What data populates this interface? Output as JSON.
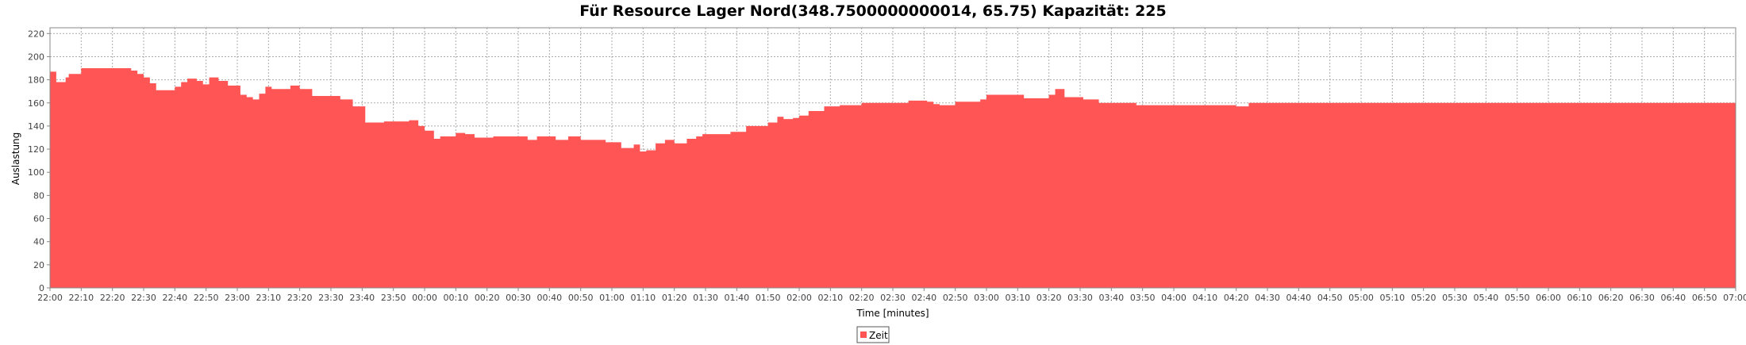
{
  "chart_data": {
    "type": "area",
    "title": "Für Resource Lager Nord(348.7500000000014, 65.75) Kapazität: 225",
    "xlabel": "Time [minutes]",
    "ylabel": "Auslastung",
    "ylim": [
      0,
      225
    ],
    "xlim": [
      "22:00",
      "07:00"
    ],
    "x_domain_minutes": [
      0,
      540
    ],
    "y_ticks": [
      "0",
      "20",
      "40",
      "60",
      "80",
      "100",
      "120",
      "140",
      "160",
      "180",
      "200",
      "220"
    ],
    "x_ticks": [
      "22:00",
      "22:10",
      "22:20",
      "22:30",
      "22:40",
      "22:50",
      "23:00",
      "23:10",
      "23:20",
      "23:30",
      "23:40",
      "23:50",
      "00:00",
      "00:10",
      "00:20",
      "00:30",
      "00:40",
      "00:50",
      "01:00",
      "01:10",
      "01:20",
      "01:30",
      "01:40",
      "01:50",
      "02:00",
      "02:10",
      "02:20",
      "02:30",
      "02:40",
      "02:50",
      "03:00",
      "03:10",
      "03:20",
      "03:30",
      "03:40",
      "03:50",
      "04:00",
      "04:10",
      "04:20",
      "04:30",
      "04:40",
      "04:50",
      "05:00",
      "05:10",
      "05:20",
      "05:30",
      "05:40",
      "05:50",
      "06:00",
      "06:10",
      "06:20",
      "06:30",
      "06:40",
      "06:50",
      "07:00"
    ],
    "grid": true,
    "legend_position": "bottom",
    "series": [
      {
        "name": "Zeit",
        "color": "#ff5555",
        "x": [
          "22:00",
          "22:02",
          "22:05",
          "22:06",
          "22:10",
          "22:26",
          "22:28",
          "22:30",
          "22:32",
          "22:34",
          "22:40",
          "22:42",
          "22:44",
          "22:47",
          "22:49",
          "22:51",
          "22:54",
          "22:57",
          "23:01",
          "23:03",
          "23:05",
          "23:07",
          "23:09",
          "23:11",
          "23:17",
          "23:20",
          "23:24",
          "23:33",
          "23:37",
          "23:41",
          "23:47",
          "23:55",
          "23:58",
          "24:00",
          "24:03",
          "24:05",
          "24:10",
          "24:13",
          "24:16",
          "24:22",
          "24:25",
          "24:33",
          "24:36",
          "24:42",
          "24:46",
          "24:50",
          "24:58",
          "25:03",
          "25:07",
          "25:09",
          "25:11",
          "25:14",
          "25:17",
          "25:20",
          "25:24",
          "25:27",
          "25:29",
          "25:34",
          "25:38",
          "25:43",
          "25:50",
          "25:53",
          "25:55",
          "25:58",
          "26:00",
          "26:03",
          "26:08",
          "26:13",
          "26:20",
          "26:28",
          "26:30",
          "26:35",
          "26:41",
          "26:43",
          "26:45",
          "26:50",
          "26:58",
          "27:00",
          "27:12",
          "27:20",
          "27:22",
          "27:25",
          "27:28",
          "27:31",
          "27:36",
          "27:47",
          "27:48",
          "28:11",
          "28:20",
          "28:24",
          "28:26",
          "28:40",
          "31:00"
        ],
        "values": [
          187,
          178,
          182,
          185,
          190,
          188,
          185,
          182,
          177,
          171,
          174,
          178,
          181,
          179,
          176,
          182,
          179,
          175,
          167,
          165,
          163,
          168,
          174,
          172,
          175,
          172,
          166,
          163,
          157,
          143,
          144,
          145,
          140,
          136,
          129,
          131,
          134,
          133,
          130,
          131,
          131,
          128,
          131,
          128,
          131,
          128,
          126,
          121,
          124,
          118,
          119,
          125,
          128,
          125,
          129,
          131,
          133,
          133,
          135,
          140,
          143,
          148,
          146,
          147,
          149,
          153,
          157,
          158,
          160,
          160,
          160,
          162,
          161,
          159,
          158,
          161,
          163,
          167,
          164,
          167,
          172,
          165,
          165,
          163,
          160,
          160,
          158,
          158,
          157,
          160,
          160,
          160,
          160
        ],
        "x_minutes": [
          0,
          2,
          5,
          6,
          10,
          26,
          28,
          30,
          32,
          34,
          40,
          42,
          44,
          47,
          49,
          51,
          54,
          57,
          61,
          63,
          65,
          67,
          69,
          71,
          77,
          80,
          84,
          93,
          97,
          101,
          107,
          115,
          118,
          120,
          123,
          125,
          130,
          133,
          136,
          142,
          145,
          153,
          156,
          162,
          166,
          170,
          178,
          183,
          187,
          189,
          191,
          194,
          197,
          200,
          204,
          207,
          209,
          214,
          218,
          223,
          230,
          233,
          235,
          238,
          240,
          243,
          248,
          253,
          260,
          268,
          270,
          275,
          281,
          283,
          285,
          290,
          298,
          300,
          312,
          320,
          322,
          325,
          328,
          331,
          336,
          347,
          348,
          371,
          380,
          384,
          386,
          400,
          540
        ]
      }
    ]
  }
}
